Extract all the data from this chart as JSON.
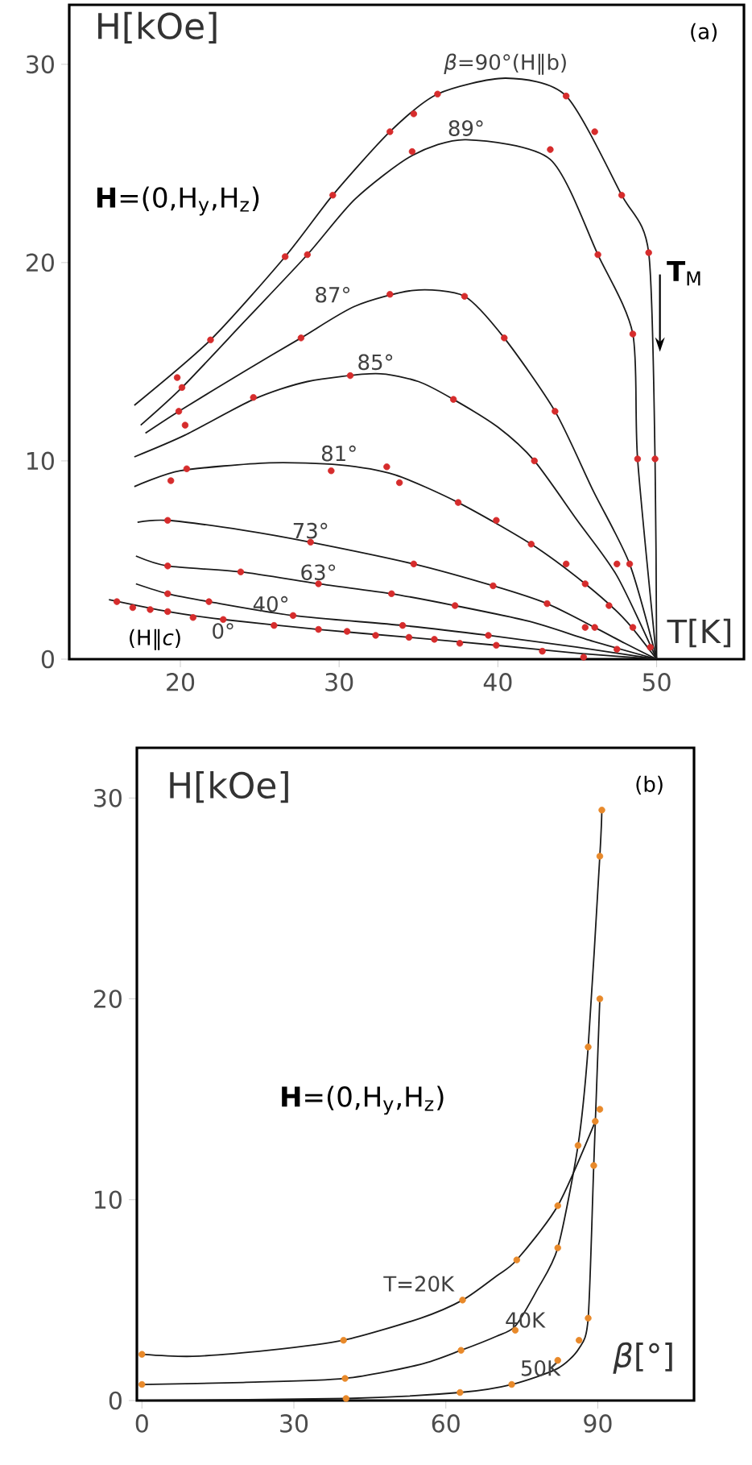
{
  "chart_data": [
    {
      "type": "line",
      "title": "(a)",
      "xlabel": "T[K]",
      "ylabel": "H[kOe]",
      "xlim": [
        13,
        55.5
      ],
      "ylim": [
        0,
        33
      ],
      "xticks": [
        20,
        30,
        40,
        50
      ],
      "yticks": [
        0,
        10,
        20,
        30
      ],
      "annotations": [
        "**H**=(0,H$_{y}$,H$_{z}$)",
        {
          "text": "**T**$_{M}$",
          "x": 49.7,
          "y": 15.5
        },
        "(H‖*c*)"
      ],
      "series": [
        {
          "name": "*β*=90°(H‖b)",
          "color": "#1a1a1a",
          "marker": "none",
          "x": [
            17.1,
            21.9,
            26.6,
            29.6,
            33.2,
            36.2,
            40.5,
            44.3,
            47.8,
            49.5,
            49.9,
            50
          ],
          "values": [
            12.8,
            16.1,
            20.3,
            23.4,
            26.6,
            28.5,
            29.3,
            28.4,
            23.4,
            20.5,
            10.1,
            0
          ]
        },
        {
          "name": "89°",
          "color": "#1a1a1a",
          "marker": "none",
          "x": [
            17.5,
            20.1,
            24,
            28,
            31,
            34.6,
            38,
            43.3,
            46.3,
            48.5,
            48.8,
            50
          ],
          "values": [
            11.8,
            13.7,
            17,
            20.4,
            23.2,
            25.4,
            26.2,
            25.2,
            20.4,
            16.4,
            10.1,
            0
          ]
        },
        {
          "name": "87°",
          "color": "#1a1a1a",
          "marker": "none",
          "x": [
            17.8,
            19.9,
            24,
            27.6,
            31,
            34.7,
            37.9,
            40.4,
            43.6,
            46,
            48.3,
            50
          ],
          "values": [
            11.4,
            12.5,
            14.5,
            16.2,
            17.8,
            18.6,
            18.3,
            16.2,
            12.5,
            8.5,
            4.8,
            0
          ]
        },
        {
          "name": "85°",
          "color": "#1a1a1a",
          "marker": "none",
          "x": [
            17.1,
            20.3,
            24.6,
            28,
            32.3,
            35,
            37.2,
            40,
            42.3,
            45,
            47.5,
            50
          ],
          "values": [
            10.2,
            11.3,
            13.1,
            14,
            14.4,
            14,
            13.1,
            11.7,
            10,
            7,
            4.2,
            0
          ]
        },
        {
          "name": "81°",
          "color": "#1a1a1a",
          "marker": "none",
          "x": [
            17.1,
            20,
            25.6,
            30,
            33.5,
            37.5,
            42.1,
            45.5,
            48,
            50
          ],
          "values": [
            8.7,
            9.5,
            9.9,
            9.8,
            9.3,
            7.9,
            5.8,
            3.8,
            2,
            0
          ]
        },
        {
          "name": "73°",
          "color": "#1a1a1a",
          "marker": "none",
          "x": [
            17.3,
            19.2,
            24,
            28.2,
            34.7,
            39.7,
            43.1,
            46.1,
            48,
            50
          ],
          "values": [
            6.9,
            7.0,
            6.5,
            5.9,
            4.8,
            3.7,
            2.8,
            1.6,
            0.8,
            0
          ]
        },
        {
          "name": "63°",
          "color": "#1a1a1a",
          "marker": "none",
          "x": [
            17.2,
            19.2,
            23.8,
            28.7,
            33.3,
            37.3,
            42,
            46,
            50
          ],
          "values": [
            5.2,
            4.7,
            4.4,
            3.8,
            3.3,
            2.7,
            1.9,
            0.9,
            0
          ]
        },
        {
          "name": "40°",
          "color": "#1a1a1a",
          "marker": "none",
          "x": [
            17.2,
            19.2,
            21.8,
            27.1,
            34,
            39.4,
            45,
            50
          ],
          "values": [
            3.8,
            3.3,
            2.9,
            2.2,
            1.7,
            1.2,
            0.6,
            0
          ]
        },
        {
          "name": "0°",
          "color": "#1a1a1a",
          "marker": "none",
          "x": [
            15.5,
            19.2,
            22.7,
            28.7,
            34.4,
            39.9,
            45,
            50
          ],
          "values": [
            3.0,
            2.4,
            2.0,
            1.5,
            1.1,
            0.7,
            0.3,
            0
          ]
        },
        {
          "type": "scatter",
          "color": "#d62c2c",
          "marker": "circle",
          "x": [
            21.9,
            26.6,
            29.6,
            33.2,
            34.7,
            36.2,
            44.3,
            46.1,
            47.8,
            49.5,
            48.5,
            49.9,
            19.8,
            20.1,
            28.0,
            34.6,
            43.3,
            46.3,
            48.8,
            19.9,
            27.6,
            33.2,
            37.9,
            40.4,
            43.6,
            48.3,
            20.3,
            24.6,
            30.7,
            37.2,
            42.3,
            47.5,
            19.4,
            20.4,
            29.5,
            33.0,
            33.8,
            37.5,
            39.9,
            42.1,
            44.3,
            45.5,
            47.0,
            48.5,
            19.2,
            28.2,
            34.7,
            39.7,
            43.1,
            46.1,
            49.6,
            19.2,
            23.8,
            28.7,
            33.3,
            37.3,
            45.5,
            47.5,
            19.2,
            21.8,
            27.1,
            34.0,
            39.4,
            16.0,
            17.0,
            18.1,
            19.2,
            20.8,
            22.7,
            25.9,
            28.7,
            30.5,
            32.3,
            34.4,
            36.0,
            37.6,
            39.9,
            42.8,
            45.4
          ],
          "values": [
            16.1,
            20.3,
            23.4,
            26.6,
            27.5,
            28.5,
            28.4,
            26.6,
            23.4,
            20.5,
            16.4,
            10.1,
            14.2,
            13.7,
            20.4,
            25.6,
            25.7,
            20.4,
            10.1,
            12.5,
            16.2,
            18.4,
            18.3,
            16.2,
            12.5,
            4.8,
            11.8,
            13.2,
            14.3,
            13.1,
            10.0,
            4.8,
            9.0,
            9.6,
            9.5,
            9.7,
            8.9,
            7.9,
            7.0,
            5.8,
            4.8,
            3.8,
            2.7,
            1.6,
            7.0,
            5.9,
            4.8,
            3.7,
            2.8,
            1.6,
            0.6,
            4.7,
            4.4,
            3.8,
            3.3,
            2.7,
            1.6,
            0.5,
            3.3,
            2.9,
            2.2,
            1.7,
            1.2,
            2.9,
            2.6,
            2.5,
            2.4,
            2.1,
            2.0,
            1.7,
            1.5,
            1.4,
            1.2,
            1.1,
            1.0,
            0.8,
            0.7,
            0.4,
            0.1
          ]
        }
      ]
    },
    {
      "type": "line",
      "title": "(b)",
      "xlabel": "*β*[°]",
      "ylabel": "H[kOe]",
      "xlim": [
        -1,
        109
      ],
      "ylim": [
        0,
        32.5
      ],
      "xticks": [
        0,
        30,
        60,
        90
      ],
      "yticks": [
        0,
        10,
        20,
        30
      ],
      "annotations": [
        "**H**=(0,H$_{y}$,H$_{z}$)"
      ],
      "series": [
        {
          "name": "T=20K",
          "color": "#1a1a1a",
          "marker": "none",
          "x": [
            0,
            10,
            25,
            39.8,
            55,
            63.3,
            70,
            74,
            82.1,
            89.5
          ],
          "values": [
            2.3,
            2.2,
            2.5,
            3.0,
            4.1,
            5.0,
            6.2,
            7.0,
            9.7,
            13.9
          ]
        },
        {
          "name": "40K",
          "color": "#1a1a1a",
          "marker": "none",
          "x": [
            0,
            20,
            40.1,
            55,
            63,
            70,
            73.7,
            78,
            82.1,
            86.1,
            88.1,
            90.4,
            90.8
          ],
          "values": [
            0.8,
            0.9,
            1.1,
            1.8,
            2.5,
            3.2,
            3.7,
            5.5,
            7.6,
            12.7,
            17.6,
            27.1,
            29.4
          ]
        },
        {
          "name": "50K",
          "color": "#1a1a1a",
          "marker": "none",
          "x": [
            0,
            40.3,
            62.8,
            73,
            82.1,
            86.3,
            88.1,
            89.2,
            90.4
          ],
          "values": [
            0,
            0.1,
            0.4,
            0.8,
            1.6,
            2.6,
            4.1,
            11.7,
            20.0
          ]
        },
        {
          "type": "scatter",
          "color": "#e8892a",
          "marker": "circle",
          "x": [
            0,
            0,
            39.8,
            40.1,
            40.3,
            63.3,
            63,
            62.8,
            74,
            73.7,
            73,
            82.1,
            82.1,
            82.1,
            86.1,
            88.1,
            86.3,
            88.1,
            89.2,
            89.5,
            90.4,
            90.8,
            90.4,
            90.4
          ],
          "values": [
            2.3,
            0.8,
            3.0,
            1.1,
            0.1,
            5.0,
            2.5,
            0.4,
            7.0,
            3.5,
            0.8,
            9.7,
            7.6,
            2.0,
            12.7,
            17.6,
            3.0,
            4.1,
            11.7,
            13.9,
            14.5,
            29.4,
            27.1,
            20.0
          ]
        }
      ]
    }
  ]
}
